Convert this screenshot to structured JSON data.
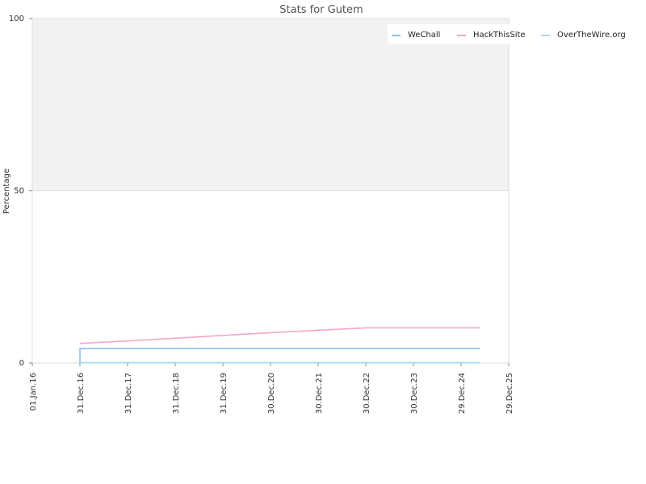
{
  "chart_data": {
    "type": "line",
    "title": "Stats for Gutem",
    "xlabel": "",
    "ylabel": "Percentage",
    "ylim": [
      0,
      100
    ],
    "yticks": [
      "0",
      "50",
      "100"
    ],
    "xlim": [
      "2016-01-01",
      "2025-12-29"
    ],
    "xticks": [
      {
        "date": "2016-01-01",
        "label": "01.Jan.16"
      },
      {
        "date": "2016-12-31",
        "label": "31.Dec.16"
      },
      {
        "date": "2017-12-31",
        "label": "31.Dec.17"
      },
      {
        "date": "2018-12-31",
        "label": "31.Dec.18"
      },
      {
        "date": "2019-12-31",
        "label": "31.Dec.19"
      },
      {
        "date": "2020-12-30",
        "label": "30.Dec.20"
      },
      {
        "date": "2021-12-30",
        "label": "30.Dec.21"
      },
      {
        "date": "2022-12-30",
        "label": "30.Dec.22"
      },
      {
        "date": "2023-12-30",
        "label": "30.Dec.23"
      },
      {
        "date": "2024-12-29",
        "label": "29.Dec.24"
      },
      {
        "date": "2025-12-29",
        "label": "29.Dec.25"
      }
    ],
    "background_bands": [
      {
        "from": 50,
        "to": 100,
        "color": "#f2f2f2"
      },
      {
        "from": 0,
        "to": 50,
        "color": "#ffffff"
      }
    ],
    "legend_position": "top-right",
    "series": [
      {
        "name": "WeChall",
        "color": "#8ec2ec",
        "step": true,
        "points": [
          {
            "x": "2016-12-31",
            "y": 0
          },
          {
            "x": "2016-12-31",
            "y": 4.2
          },
          {
            "x": "2025-05-20",
            "y": 4.2
          }
        ]
      },
      {
        "name": "HackThisSite",
        "color": "#f3a6cb",
        "step": false,
        "points": [
          {
            "x": "2016-12-31",
            "y": 5.7
          },
          {
            "x": "2017-12-31",
            "y": 6.4
          },
          {
            "x": "2018-12-31",
            "y": 7.2
          },
          {
            "x": "2019-12-31",
            "y": 8.0
          },
          {
            "x": "2020-12-30",
            "y": 8.8
          },
          {
            "x": "2021-12-30",
            "y": 9.5
          },
          {
            "x": "2022-12-30",
            "y": 10.2
          },
          {
            "x": "2023-12-30",
            "y": 10.2
          },
          {
            "x": "2024-12-29",
            "y": 10.2
          },
          {
            "x": "2025-05-20",
            "y": 10.2
          }
        ]
      },
      {
        "name": "OverTheWire.org",
        "color": "#9edbe6",
        "step": false,
        "points": [
          {
            "x": "2016-12-31",
            "y": 0.1
          },
          {
            "x": "2025-05-20",
            "y": 0.1
          }
        ]
      }
    ]
  }
}
